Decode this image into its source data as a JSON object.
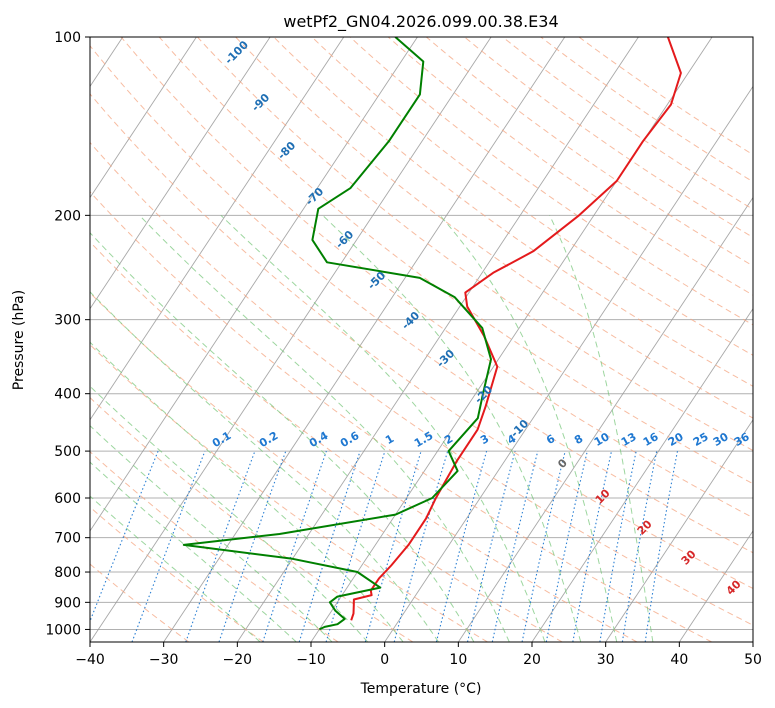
{
  "chart_data": {
    "type": "line",
    "title": "wetPf2_GN04.2026.099.00.38.E34",
    "xlabel": "Temperature (°C)",
    "ylabel": "Pressure (hPa)",
    "xlim": [
      -40,
      50
    ],
    "ylim": [
      1050,
      100
    ],
    "y_scale": "log",
    "skew": "skew-T log-P",
    "grid": true,
    "x_ticks": [
      -40,
      -30,
      -20,
      -10,
      0,
      10,
      20,
      30,
      40,
      50
    ],
    "y_ticks": [
      1000,
      900,
      800,
      700,
      600,
      500,
      400,
      300,
      200,
      100
    ],
    "colors": {
      "temperature": "#e41a1c",
      "dewpoint": "#008000",
      "isotherm": "#999999",
      "dry_adiabat": "#f4a582",
      "moist_adiabat": "#74c476",
      "mixing_ratio": "#1f78d1",
      "theta_label": "#1f6fb4",
      "theta_label_warm": "#d62728"
    },
    "series": [
      {
        "color": "#e41a1c",
        "points": [
          {
            "p": 965,
            "t": -6.5
          },
          {
            "p": 940,
            "t": -6.8
          },
          {
            "p": 910,
            "t": -7.5
          },
          {
            "p": 890,
            "t": -8.0
          },
          {
            "p": 875,
            "t": -6.0
          },
          {
            "p": 860,
            "t": -6.5
          },
          {
            "p": 820,
            "t": -6.5
          },
          {
            "p": 780,
            "t": -6.0
          },
          {
            "p": 720,
            "t": -5.5
          },
          {
            "p": 650,
            "t": -5.5
          },
          {
            "p": 600,
            "t": -6.0
          },
          {
            "p": 520,
            "t": -6.5
          },
          {
            "p": 460,
            "t": -6.5
          },
          {
            "p": 420,
            "t": -7.5
          },
          {
            "p": 360,
            "t": -9.5
          },
          {
            "p": 320,
            "t": -14.0
          },
          {
            "p": 285,
            "t": -19.0
          },
          {
            "p": 270,
            "t": -20.5
          },
          {
            "p": 250,
            "t": -18.5
          },
          {
            "p": 230,
            "t": -15.0
          },
          {
            "p": 200,
            "t": -12.0
          },
          {
            "p": 175,
            "t": -10.0
          },
          {
            "p": 150,
            "t": -10.0
          },
          {
            "p": 130,
            "t": -9.5
          },
          {
            "p": 115,
            "t": -11.0
          },
          {
            "p": 100,
            "t": -16.0
          }
        ]
      },
      {
        "color": "#008000",
        "points": [
          {
            "p": 1000,
            "t": -10.0
          },
          {
            "p": 990,
            "t": -9.5
          },
          {
            "p": 980,
            "t": -8.0
          },
          {
            "p": 960,
            "t": -7.5
          },
          {
            "p": 930,
            "t": -9.5
          },
          {
            "p": 900,
            "t": -11.0
          },
          {
            "p": 880,
            "t": -10.5
          },
          {
            "p": 850,
            "t": -5.5
          },
          {
            "p": 800,
            "t": -10.0
          },
          {
            "p": 760,
            "t": -20.0
          },
          {
            "p": 720,
            "t": -36.0
          },
          {
            "p": 690,
            "t": -24.0
          },
          {
            "p": 640,
            "t": -10.0
          },
          {
            "p": 600,
            "t": -6.5
          },
          {
            "p": 540,
            "t": -5.5
          },
          {
            "p": 500,
            "t": -8.5
          },
          {
            "p": 440,
            "t": -7.5
          },
          {
            "p": 400,
            "t": -9.0
          },
          {
            "p": 350,
            "t": -11.0
          },
          {
            "p": 310,
            "t": -15.0
          },
          {
            "p": 275,
            "t": -21.5
          },
          {
            "p": 255,
            "t": -28.0
          },
          {
            "p": 240,
            "t": -42.0
          },
          {
            "p": 220,
            "t": -46.0
          },
          {
            "p": 195,
            "t": -48.0
          },
          {
            "p": 180,
            "t": -45.5
          },
          {
            "p": 150,
            "t": -44.5
          },
          {
            "p": 125,
            "t": -44.5
          },
          {
            "p": 110,
            "t": -47.0
          },
          {
            "p": 100,
            "t": -53.0
          }
        ]
      }
    ],
    "annotations": {
      "theta_labels": [
        "-100",
        "-90",
        "-80",
        "-70",
        "-60",
        "-50",
        "-40",
        "-30",
        "-20",
        "-10",
        "0",
        "10",
        "20",
        "30",
        "40"
      ],
      "mixing_ratio_labels": [
        "0.1",
        "0.2",
        "0.4",
        "0.6",
        "1",
        "1.5",
        "2",
        "3",
        "4",
        "6",
        "8",
        "10",
        "13",
        "16",
        "20",
        "25",
        "30",
        "36"
      ]
    }
  }
}
